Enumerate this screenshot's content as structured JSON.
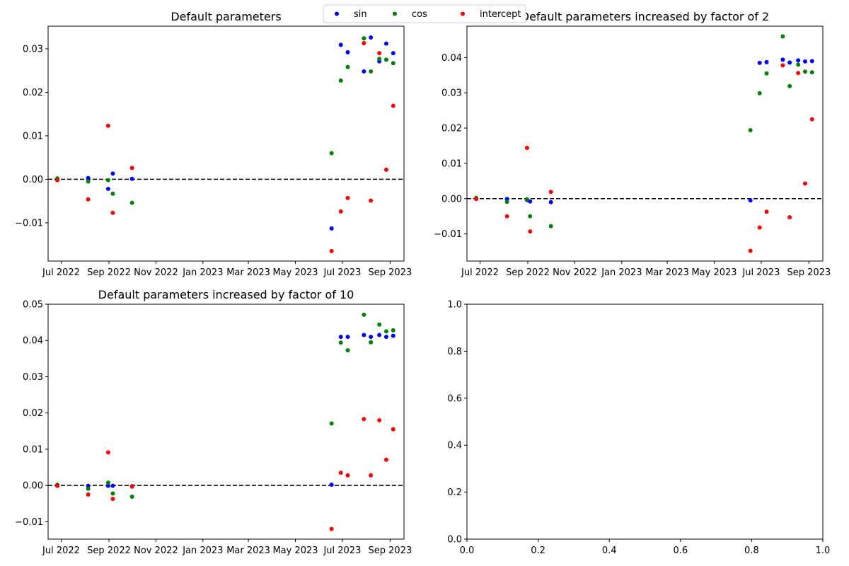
{
  "legend": {
    "entries": [
      {
        "label": "sin",
        "color": "#0000ff"
      },
      {
        "label": "cos",
        "color": "#008000"
      },
      {
        "label": "intercept",
        "color": "#ff0000"
      }
    ],
    "placement": "top-center"
  },
  "x_axis": {
    "scale": "date",
    "range": [
      "2022-06-14",
      "2023-09-19"
    ],
    "tick_dates": [
      "2022-07-01",
      "2022-09-01",
      "2022-11-01",
      "2023-01-01",
      "2023-03-01",
      "2023-05-01",
      "2023-07-01",
      "2023-09-01"
    ],
    "tick_labels": [
      "Jul 2022",
      "Sep 2022",
      "Nov 2022",
      "Jan 2023",
      "Mar 2023",
      "May 2023",
      "Jul 2023",
      "Sep 2023"
    ]
  },
  "chart_data": [
    {
      "type": "scatter",
      "title": "Default parameters",
      "xlabel": "",
      "ylabel": "",
      "ylim": [
        -0.0188,
        0.0352
      ],
      "yticks": [
        -0.01,
        0.0,
        0.01,
        0.02,
        0.03
      ],
      "ytick_labels": [
        "−0.01",
        "0.00",
        "0.01",
        "0.02",
        "0.03"
      ],
      "reference_line": {
        "y": 0,
        "style": "dashed",
        "color": "#000000"
      },
      "grid": false,
      "series": [
        {
          "name": "sin",
          "color": "#0000ff",
          "points": [
            [
              "2022-06-26",
              -0.0002
            ],
            [
              "2022-08-05",
              0.0003
            ],
            [
              "2022-08-31",
              -0.0022
            ],
            [
              "2022-09-06",
              0.0013
            ],
            [
              "2022-10-01",
              0.0001
            ],
            [
              "2023-06-17",
              -0.0113
            ],
            [
              "2023-06-29",
              0.0309
            ],
            [
              "2023-07-08",
              0.0292
            ],
            [
              "2023-07-29",
              0.0248
            ],
            [
              "2023-08-07",
              0.0326
            ],
            [
              "2023-08-18",
              0.0271
            ],
            [
              "2023-08-27",
              0.0312
            ],
            [
              "2023-09-05",
              0.029
            ]
          ]
        },
        {
          "name": "cos",
          "color": "#008000",
          "points": [
            [
              "2022-06-26",
              0.0002
            ],
            [
              "2022-08-05",
              -0.0005
            ],
            [
              "2022-08-31",
              -0.0002
            ],
            [
              "2022-09-06",
              -0.0033
            ],
            [
              "2022-10-01",
              -0.0054
            ],
            [
              "2023-06-17",
              0.006
            ],
            [
              "2023-06-29",
              0.0227
            ],
            [
              "2023-07-08",
              0.0258
            ],
            [
              "2023-07-29",
              0.0324
            ],
            [
              "2023-08-07",
              0.0248
            ],
            [
              "2023-08-18",
              0.0277
            ],
            [
              "2023-08-27",
              0.0275
            ],
            [
              "2023-09-05",
              0.0267
            ]
          ]
        },
        {
          "name": "intercept",
          "color": "#ff0000",
          "points": [
            [
              "2022-06-26",
              -0.0002
            ],
            [
              "2022-08-05",
              -0.0046
            ],
            [
              "2022-08-31",
              0.0123
            ],
            [
              "2022-09-06",
              -0.0077
            ],
            [
              "2022-10-01",
              0.0026
            ],
            [
              "2023-06-17",
              -0.0165
            ],
            [
              "2023-06-29",
              -0.0074
            ],
            [
              "2023-07-08",
              -0.0043
            ],
            [
              "2023-07-29",
              0.0313
            ],
            [
              "2023-08-07",
              -0.0049
            ],
            [
              "2023-08-18",
              0.029
            ],
            [
              "2023-08-27",
              0.0022
            ],
            [
              "2023-09-05",
              0.0169
            ]
          ]
        }
      ]
    },
    {
      "type": "scatter",
      "title": "Default parameters increased by factor of 2",
      "xlabel": "",
      "ylabel": "",
      "ylim": [
        -0.0177,
        0.0489
      ],
      "yticks": [
        -0.01,
        0.0,
        0.01,
        0.02,
        0.03,
        0.04
      ],
      "ytick_labels": [
        "−0.01",
        "0.00",
        "0.01",
        "0.02",
        "0.03",
        "0.04"
      ],
      "reference_line": {
        "y": 0,
        "style": "dashed",
        "color": "#000000"
      },
      "grid": false,
      "series": [
        {
          "name": "sin",
          "color": "#0000ff",
          "points": [
            [
              "2022-06-26",
              0.0
            ],
            [
              "2022-08-05",
              -0.0001
            ],
            [
              "2022-08-31",
              -0.0004
            ],
            [
              "2022-09-04",
              -0.0008
            ],
            [
              "2022-10-01",
              -0.001
            ],
            [
              "2023-06-17",
              -0.0005
            ],
            [
              "2023-06-29",
              0.0385
            ],
            [
              "2023-07-08",
              0.0387
            ],
            [
              "2023-07-29",
              0.0394
            ],
            [
              "2023-08-07",
              0.0386
            ],
            [
              "2023-08-18",
              0.0392
            ],
            [
              "2023-08-27",
              0.0389
            ],
            [
              "2023-09-05",
              0.039
            ]
          ]
        },
        {
          "name": "cos",
          "color": "#008000",
          "points": [
            [
              "2022-06-26",
              0.0002
            ],
            [
              "2022-08-05",
              -0.0009
            ],
            [
              "2022-08-31",
              -0.0002
            ],
            [
              "2022-09-04",
              -0.005
            ],
            [
              "2022-10-01",
              -0.0078
            ],
            [
              "2023-06-17",
              0.0194
            ],
            [
              "2023-06-29",
              0.0299
            ],
            [
              "2023-07-08",
              0.0355
            ],
            [
              "2023-07-29",
              0.046
            ],
            [
              "2023-08-07",
              0.0319
            ],
            [
              "2023-08-18",
              0.038
            ],
            [
              "2023-08-27",
              0.036
            ],
            [
              "2023-09-05",
              0.0358
            ]
          ]
        },
        {
          "name": "intercept",
          "color": "#ff0000",
          "points": [
            [
              "2022-06-26",
              -0.0001
            ],
            [
              "2022-08-05",
              -0.005
            ],
            [
              "2022-08-31",
              0.0144
            ],
            [
              "2022-09-04",
              -0.0093
            ],
            [
              "2022-10-01",
              0.0019
            ],
            [
              "2023-06-17",
              -0.0148
            ],
            [
              "2023-06-29",
              -0.0082
            ],
            [
              "2023-07-08",
              -0.0037
            ],
            [
              "2023-07-29",
              0.0378
            ],
            [
              "2023-08-07",
              -0.0053
            ],
            [
              "2023-08-18",
              0.0356
            ],
            [
              "2023-08-27",
              0.0043
            ],
            [
              "2023-09-05",
              0.0225
            ]
          ]
        }
      ]
    },
    {
      "type": "scatter",
      "title": "Default parameters increased by factor of 10",
      "xlabel": "",
      "ylabel": "",
      "ylim": [
        -0.0148,
        0.05
      ],
      "yticks": [
        -0.01,
        0.0,
        0.01,
        0.02,
        0.03,
        0.04,
        0.05
      ],
      "ytick_labels": [
        "−0.01",
        "0.00",
        "0.01",
        "0.02",
        "0.03",
        "0.04",
        "0.05"
      ],
      "reference_line": {
        "y": 0,
        "style": "dashed",
        "color": "#000000"
      },
      "grid": false,
      "series": [
        {
          "name": "sin",
          "color": "#0000ff",
          "points": [
            [
              "2022-06-26",
              -0.0001
            ],
            [
              "2022-08-05",
              -0.0001
            ],
            [
              "2022-08-31",
              -0.0001
            ],
            [
              "2022-09-06",
              -0.0001
            ],
            [
              "2022-10-01",
              -0.0002
            ],
            [
              "2023-06-17",
              0.0002
            ],
            [
              "2023-06-29",
              0.041
            ],
            [
              "2023-07-08",
              0.041
            ],
            [
              "2023-07-29",
              0.0415
            ],
            [
              "2023-08-07",
              0.041
            ],
            [
              "2023-08-18",
              0.0415
            ],
            [
              "2023-08-27",
              0.041
            ],
            [
              "2023-09-05",
              0.0413
            ]
          ]
        },
        {
          "name": "cos",
          "color": "#008000",
          "points": [
            [
              "2022-06-26",
              0.0002
            ],
            [
              "2022-08-05",
              -0.0009
            ],
            [
              "2022-08-31",
              0.0008
            ],
            [
              "2022-09-06",
              -0.0022
            ],
            [
              "2022-10-01",
              -0.0031
            ],
            [
              "2023-06-17",
              0.0171
            ],
            [
              "2023-06-29",
              0.0394
            ],
            [
              "2023-07-08",
              0.0373
            ],
            [
              "2023-07-29",
              0.0471
            ],
            [
              "2023-08-07",
              0.0395
            ],
            [
              "2023-08-18",
              0.0444
            ],
            [
              "2023-08-27",
              0.0425
            ],
            [
              "2023-09-05",
              0.0428
            ]
          ]
        },
        {
          "name": "intercept",
          "color": "#ff0000",
          "points": [
            [
              "2022-06-26",
              -0.0001
            ],
            [
              "2022-08-05",
              -0.0025
            ],
            [
              "2022-08-31",
              0.0091
            ],
            [
              "2022-09-06",
              -0.0037
            ],
            [
              "2022-10-01",
              -0.0003
            ],
            [
              "2023-06-17",
              -0.012
            ],
            [
              "2023-06-29",
              0.0035
            ],
            [
              "2023-07-08",
              0.0028
            ],
            [
              "2023-07-29",
              0.0183
            ],
            [
              "2023-08-07",
              0.0028
            ],
            [
              "2023-08-18",
              0.018
            ],
            [
              "2023-08-27",
              0.0071
            ],
            [
              "2023-09-05",
              0.0155
            ]
          ]
        }
      ]
    },
    {
      "type": "scatter",
      "title": "",
      "xlabel": "",
      "ylabel": "",
      "xlim": [
        0,
        1
      ],
      "ylim": [
        0,
        1
      ],
      "xticks": [
        0.0,
        0.2,
        0.4,
        0.6,
        0.8,
        1.0
      ],
      "xtick_labels": [
        "0.0",
        "0.2",
        "0.4",
        "0.6",
        "0.8",
        "1.0"
      ],
      "yticks": [
        0.0,
        0.2,
        0.4,
        0.6,
        0.8,
        1.0
      ],
      "ytick_labels": [
        "0.0",
        "0.2",
        "0.4",
        "0.6",
        "0.8",
        "1.0"
      ],
      "grid": false,
      "series": []
    }
  ]
}
